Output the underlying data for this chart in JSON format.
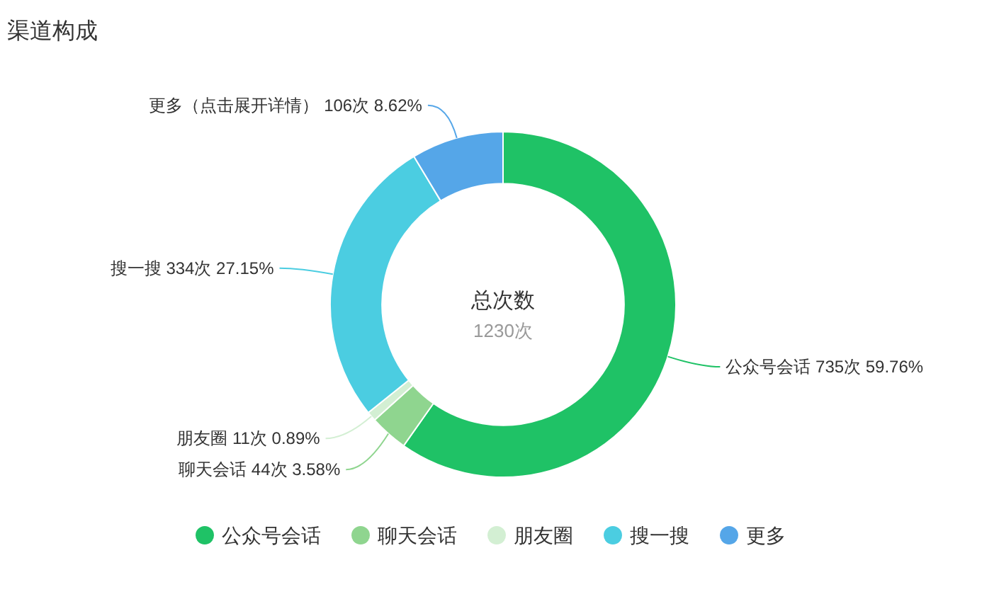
{
  "chart_data": {
    "type": "donut",
    "title": "渠道构成",
    "categories": [
      "公众号会话",
      "聊天会话",
      "朋友圈",
      "搜一搜",
      "更多"
    ],
    "values": [
      735,
      44,
      11,
      334,
      106
    ],
    "colors": [
      "#1fc266",
      "#8fd58f",
      "#d3efd3",
      "#4bcde1",
      "#55a6e8"
    ],
    "value_labels": [
      "公众号会话 735次 59.76%",
      "聊天会话 44次 3.58%",
      "朋友圈 11次 0.89%",
      "搜一搜 334次 27.15%",
      "更多（点击展开详情） 106次 8.62%"
    ],
    "annotations": [
      "总次数",
      "1230次"
    ],
    "legend": "bottom"
  }
}
